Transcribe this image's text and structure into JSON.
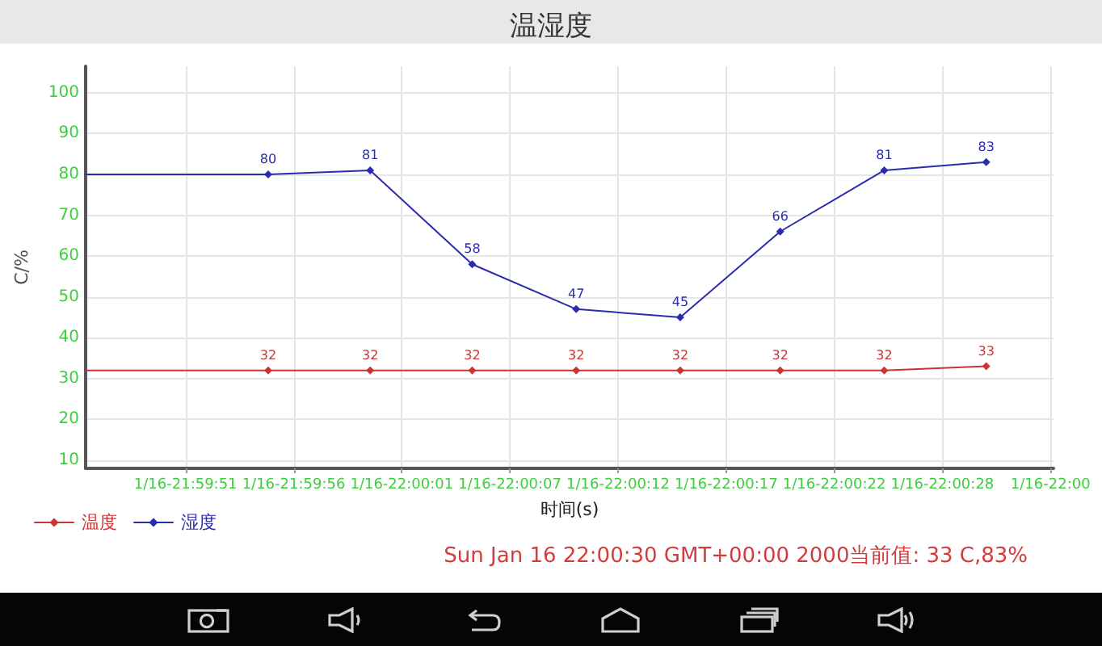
{
  "chart_data": {
    "type": "line",
    "title": "温湿度",
    "xlabel": "时间(s)",
    "ylabel": "C/%",
    "x": [
      "2000-01-16T21:59:46.25",
      "2000-01-16T21:59:55.2",
      "2000-01-16T22:00:00.2",
      "2000-01-16T22:00:05.2",
      "2000-01-16T22:00:10.3",
      "2000-01-16T22:00:15.4",
      "2000-01-16T22:00:20.3",
      "2000-01-16T22:00:25.4",
      "2000-01-16T22:00:30.4"
    ],
    "series": [
      {
        "name": "温度",
        "color": "#cc3333",
        "values": [
          32,
          32,
          32,
          32,
          32,
          32,
          32,
          32,
          33
        ],
        "value_labels": [
          null,
          "32",
          "32",
          "32",
          "32",
          "32",
          "32",
          "32",
          "33"
        ]
      },
      {
        "name": "湿度",
        "color": "#2b2bb0",
        "values": [
          80,
          80,
          81,
          58,
          47,
          45,
          66,
          81,
          83
        ],
        "value_labels": [
          null,
          "80",
          "81",
          "58",
          "47",
          "45",
          "66",
          "81",
          "83"
        ]
      }
    ],
    "xlim": [
      "2000-01-16T21:59:46.25",
      "2000-01-16T22:00:33.7"
    ],
    "xticks": [
      {
        "value": "2000-01-16T21:59:51.15",
        "label": "1/16-21:59:51"
      },
      {
        "value": "2000-01-16T21:59:56.45",
        "label": "1/16-21:59:56"
      },
      {
        "value": "2000-01-16T22:00:01.75",
        "label": "1/16-22:00:01"
      },
      {
        "value": "2000-01-16T22:00:07.05",
        "label": "1/16-22:00:07"
      },
      {
        "value": "2000-01-16T22:00:12.35",
        "label": "1/16-22:00:12"
      },
      {
        "value": "2000-01-16T22:00:17.65",
        "label": "1/16-22:00:17"
      },
      {
        "value": "2000-01-16T22:00:22.95",
        "label": "1/16-22:00:22"
      },
      {
        "value": "2000-01-16T22:00:28.25",
        "label": "1/16-22:00:28"
      },
      {
        "value": "2000-01-16T22:00:33.55",
        "label": "1/16-22:00"
      }
    ],
    "ylim": [
      8,
      106.5
    ],
    "yticks": [
      10,
      20,
      30,
      40,
      50,
      60,
      70,
      80,
      90,
      100
    ],
    "grid": true,
    "legend": "bottom left",
    "marker": "diamond",
    "line_style": "solid",
    "annotations": [
      "Sun Jan 16 22:00:30 GMT+00:00 2000当前值: 33 C,83%"
    ]
  }
}
